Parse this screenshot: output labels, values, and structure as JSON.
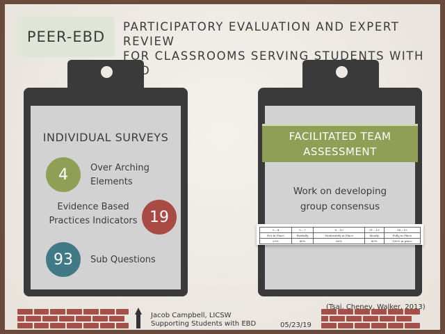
{
  "header": {
    "badge": "PEER-EBD",
    "line1": "PARTICIPATORY EVALUATION AND EXPERT REVIEW",
    "line2": "FOR CLASSROOMS SERVING STUDENTS WITH EBD"
  },
  "left_board": {
    "title": "INDIVIDUAL SURVEYS",
    "items": [
      {
        "number": "4",
        "label_1": "Over Arching",
        "label_2": "Elements",
        "color": "#8f9f55"
      },
      {
        "number": "19",
        "label_1": "Evidence Based",
        "label_2": "Practices Indicators",
        "color": "#a94a45"
      },
      {
        "number": "93",
        "label_1": "Sub Questions",
        "label_2": "",
        "color": "#3f7a86"
      }
    ]
  },
  "right_board": {
    "banner_1": "FACILITATED TEAM",
    "banner_2": "ASSESSMENT",
    "text_1": "Work on developing",
    "text_2": "group consensus",
    "scale_headers": [
      "3 – 4",
      "5 – 7",
      "8 – 10",
      "11 – 13",
      "14 – 15"
    ],
    "scale_labels": [
      "Not in Place",
      "Partially",
      "Moderately in Place",
      "Mostly",
      "Fully in Place"
    ],
    "scale_percents": [
      "20%",
      "40%",
      "60%",
      "80%",
      "100% in place"
    ]
  },
  "footer": {
    "author": "Jacob Campbell, LICSW",
    "subtitle": "Supporting Students with EBD",
    "date": "05/23/19",
    "citation": "(Tsai, Cheney, Walker, 2013)"
  },
  "colors": {
    "green": "#8f9f55",
    "red": "#a94a45",
    "teal": "#3f7a86",
    "brick": "#a3504a"
  }
}
